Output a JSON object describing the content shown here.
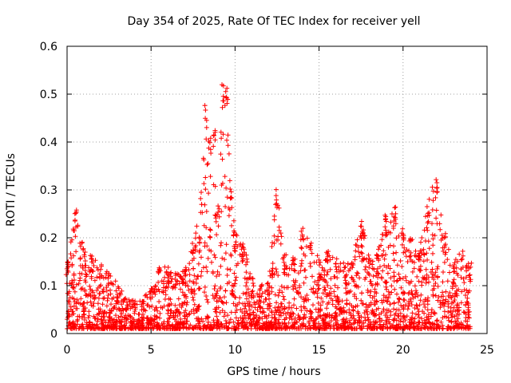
{
  "chart_data": {
    "type": "scatter",
    "title": "Day 354 of 2025, Rate Of TEC Index for receiver yell",
    "xlabel": "GPS time / hours",
    "ylabel": "ROTI / TECUs",
    "xlim": [
      0,
      25
    ],
    "ylim": [
      0,
      0.6
    ],
    "xticks": [
      0,
      5,
      10,
      15,
      20,
      25
    ],
    "xtick_labels": [
      "0",
      "5",
      "10",
      "15",
      "20",
      "25"
    ],
    "yticks": [
      0,
      0.1,
      0.2,
      0.3,
      0.4,
      0.5,
      0.6
    ],
    "ytick_labels": [
      "0",
      "0.1",
      "0.2",
      "0.3",
      "0.4",
      "0.5",
      "0.6"
    ],
    "grid": true,
    "marker": "+",
    "color": "#ff0000",
    "series": [
      {
        "name": "ROTI",
        "envelope_x": [
          0,
          0.5,
          1,
          1.5,
          2,
          2.5,
          3,
          3.5,
          4,
          4.5,
          5,
          5.5,
          6,
          6.5,
          7,
          7.5,
          8,
          8.25,
          8.5,
          8.75,
          9,
          9.25,
          9.5,
          9.75,
          10,
          10.5,
          11,
          11.5,
          12,
          12.5,
          13,
          13.5,
          14,
          14.5,
          15,
          15.5,
          16,
          16.5,
          17,
          17.5,
          18,
          18.5,
          19,
          19.5,
          20,
          20.5,
          21,
          21.5,
          22,
          22.5,
          23,
          23.5,
          24
        ],
        "envelope_max": [
          0.15,
          0.26,
          0.18,
          0.17,
          0.15,
          0.13,
          0.11,
          0.08,
          0.07,
          0.07,
          0.1,
          0.14,
          0.14,
          0.13,
          0.14,
          0.19,
          0.3,
          0.48,
          0.42,
          0.43,
          0.27,
          0.52,
          0.52,
          0.3,
          0.22,
          0.19,
          0.12,
          0.1,
          0.11,
          0.31,
          0.17,
          0.16,
          0.22,
          0.19,
          0.16,
          0.18,
          0.16,
          0.15,
          0.15,
          0.25,
          0.17,
          0.17,
          0.25,
          0.27,
          0.22,
          0.2,
          0.18,
          0.28,
          0.34,
          0.21,
          0.15,
          0.18,
          0.15
        ],
        "baseline_min": 0.01,
        "x_range": [
          0,
          24
        ]
      }
    ]
  }
}
